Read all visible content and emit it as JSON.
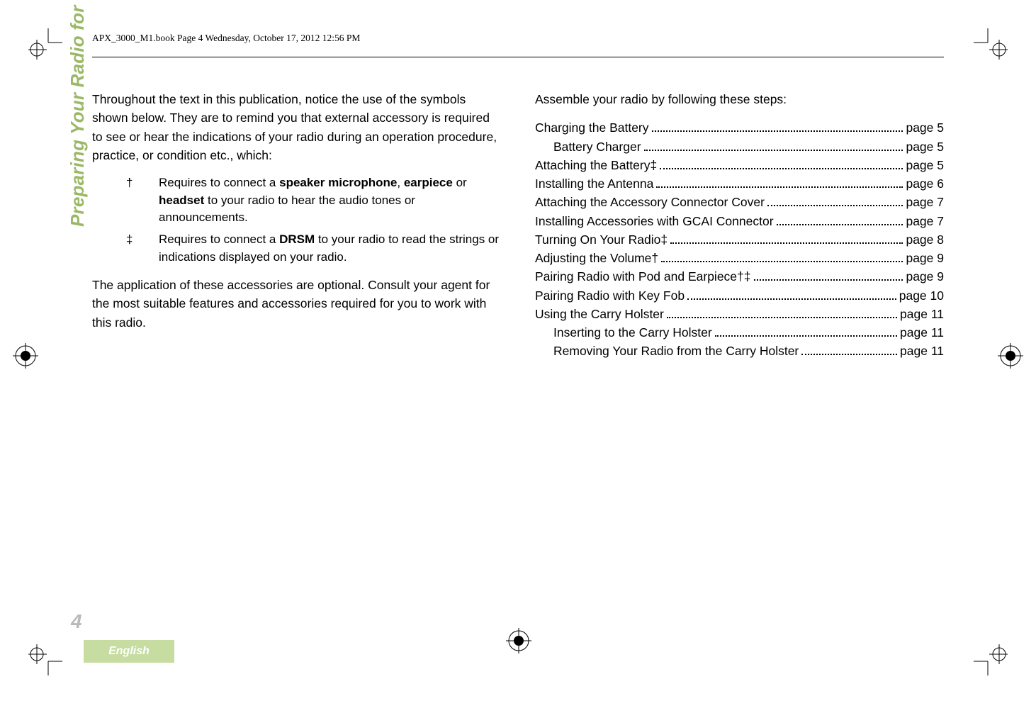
{
  "running_head": "APX_3000_M1.book  Page 4  Wednesday, October 17, 2012  12:56 PM",
  "side_tab": "Preparing Your Radio for Use",
  "page_number": "4",
  "language_label": "English",
  "colors": {
    "accent_green": "#9bb866",
    "lang_box_bg": "#c7dca1",
    "lang_box_text": "#ffffff",
    "page_number": "#b9b9b9",
    "body_text": "#000000",
    "background": "#ffffff"
  },
  "typography": {
    "body_fontsize_pt": 13,
    "running_head_font": "Times New Roman",
    "body_font": "Arial",
    "side_tab_fontsize_pt": 20,
    "side_tab_weight": "bold",
    "side_tab_style": "italic",
    "page_number_fontsize_pt": 21
  },
  "left_col": {
    "para1": "Throughout the text in this publication, notice the use of the symbols shown below. They are to remind you that external accessory is required to see or hear the indications of your radio during an operation procedure, practice, or condition etc., which:",
    "symbols": [
      {
        "mark": "†",
        "text_before": "Requires to connect a ",
        "b1": "speaker microphone",
        "mid1": ", ",
        "b2": "earpiece",
        "mid2": " or ",
        "b3": "headset",
        "text_after": " to your radio to hear the audio tones or announcements."
      },
      {
        "mark": "‡",
        "text_before": "Requires to connect a ",
        "b1": "DRSM",
        "text_after": " to your radio to read the strings or indications displayed on your radio."
      }
    ],
    "para2": "The application of these accessories are optional. Consult your agent for the most suitable features and accessories required for you to work with this radio."
  },
  "right_col": {
    "intro": "Assemble your radio by following these steps:",
    "toc": [
      {
        "label": "Charging the Battery",
        "page": "page 5",
        "indent": false
      },
      {
        "label": "Battery Charger",
        "page": "page 5",
        "indent": true
      },
      {
        "label": "Attaching the Battery‡",
        "page": "page 5",
        "indent": false
      },
      {
        "label": "Installing the Antenna",
        "page": "page 6",
        "indent": false
      },
      {
        "label": "Attaching the Accessory Connector Cover",
        "page": "page 7",
        "indent": false
      },
      {
        "label": "Installing Accessories with GCAI Connector",
        "page": "page 7",
        "indent": false
      },
      {
        "label": "Turning On Your Radio‡",
        "page": "page 8",
        "indent": false
      },
      {
        "label": "Adjusting the Volume†",
        "page": "page 9",
        "indent": false
      },
      {
        "label": "Pairing Radio with Pod and Earpiece†‡",
        "page": "page 9",
        "indent": false
      },
      {
        "label": "Pairing Radio with Key Fob",
        "page": "page 10",
        "indent": false
      },
      {
        "label": "Using the Carry Holster",
        "page": "page 11",
        "indent": false
      },
      {
        "label": "Inserting to the Carry Holster",
        "page": "page 11",
        "indent": true
      },
      {
        "label": "Removing Your Radio from the Carry Holster",
        "page": "page 11",
        "indent": true
      }
    ]
  }
}
